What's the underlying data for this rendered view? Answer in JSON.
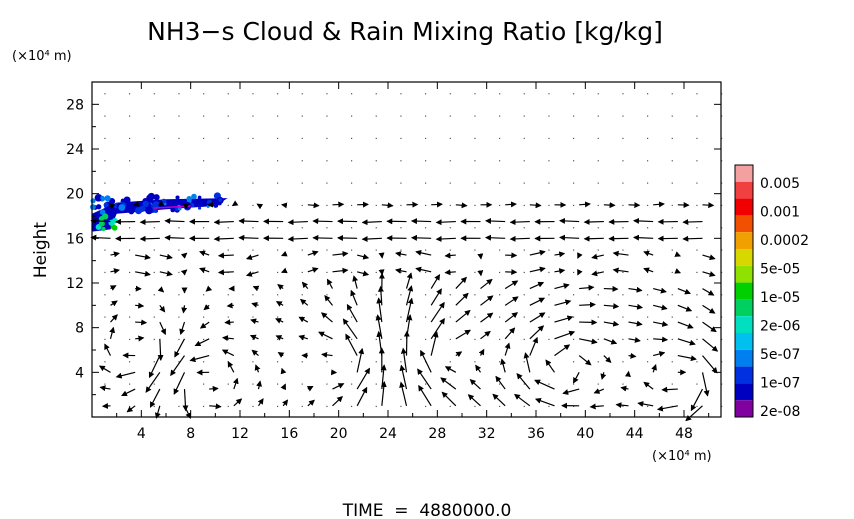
{
  "chart_data": {
    "type": "heatmap",
    "title": "NH3−s Cloud & Rain Mixing Ratio [kg/kg]",
    "ylabel": "Height",
    "xlabel": "",
    "x_unit": "(×10⁴ m)",
    "y_unit": "(×10⁴ m)",
    "xlim": [
      0,
      51
    ],
    "ylim": [
      0,
      30
    ],
    "x_ticks": [
      4,
      8,
      12,
      16,
      20,
      24,
      28,
      32,
      36,
      40,
      44,
      48
    ],
    "y_ticks": [
      4,
      8,
      12,
      16,
      20,
      24,
      28
    ],
    "x_tick_labels": [
      "4",
      "8",
      "12",
      "16",
      "20",
      "24",
      "28",
      "32",
      "36",
      "40",
      "44",
      "48"
    ],
    "y_tick_labels": [
      "4",
      "8",
      "12",
      "16",
      "20",
      "24",
      "28"
    ],
    "colorbar": {
      "labels": [
        "0.005",
        "0.001",
        "0.0002",
        "5e-05",
        "1e-05",
        "2e-06",
        "5e-07",
        "1e-07",
        "2e-08"
      ],
      "colors": [
        "#f4a0a0",
        "#f04040",
        "#f00000",
        "#f05000",
        "#f0a000",
        "#d8d800",
        "#90e000",
        "#00d000",
        "#00d060",
        "#00e0c0",
        "#00c0f0",
        "#0080f0",
        "#0030e0",
        "#0000c0",
        "#8000a0"
      ]
    },
    "cloud_region": {
      "x_range": [
        0,
        11
      ],
      "y_range": [
        16.5,
        20
      ]
    },
    "grid": "dotted",
    "footer": "TIME  =  4880000.0"
  }
}
